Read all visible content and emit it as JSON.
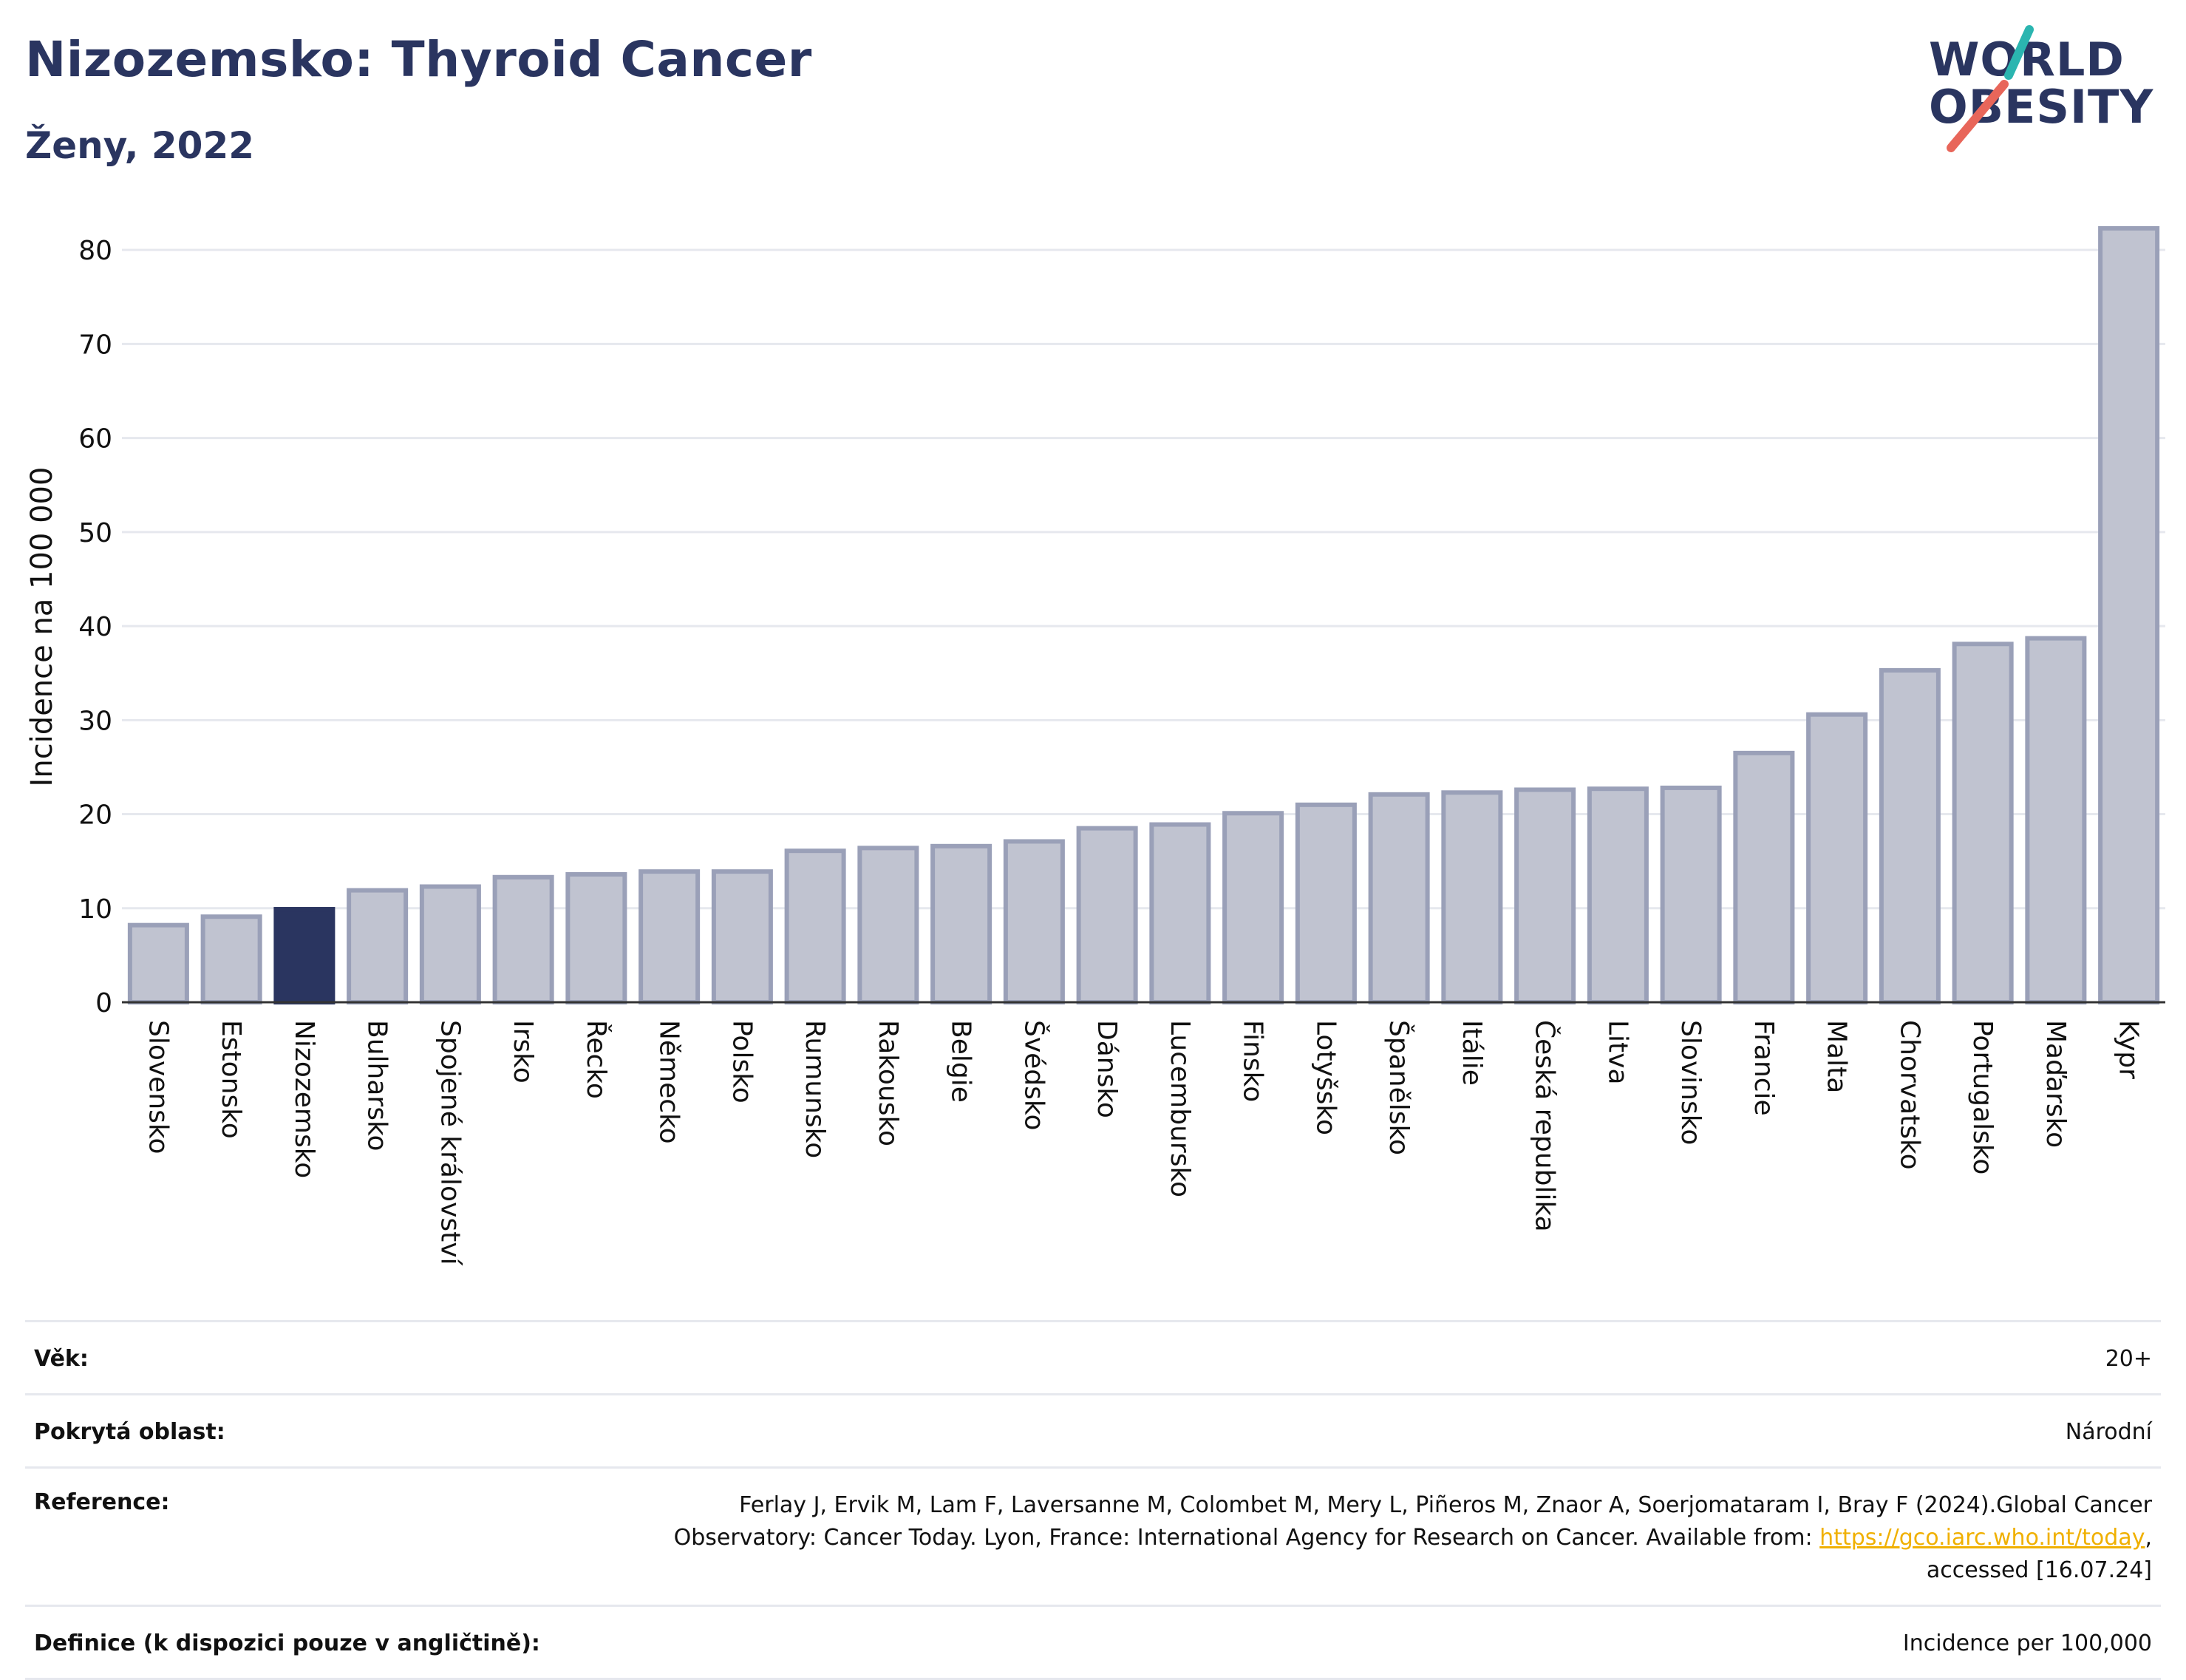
{
  "header": {
    "title": "Nizozemsko: Thyroid Cancer",
    "subtitle": "Ženy, 2022"
  },
  "logo": {
    "line1": "WORLD",
    "line2": "OBESITY",
    "colors": {
      "text": "#2a3560",
      "slash_top": "#2bb5b0",
      "slash_bottom": "#e8665a"
    }
  },
  "chart_data": {
    "type": "bar",
    "ylabel": "Incidence na 100 000",
    "ylim": [
      0,
      83
    ],
    "yticks": [
      0,
      10,
      20,
      30,
      40,
      50,
      60,
      70,
      80
    ],
    "grid": true,
    "highlight_category": "Nizozemsko",
    "colors": {
      "bar": "#c0c3d0",
      "bar_border": "#9aa0b8",
      "highlight": "#2a3560",
      "grid": "#e6e8ee",
      "axis": "#333333"
    },
    "categories": [
      "Slovensko",
      "Estonsko",
      "Nizozemsko",
      "Bulharsko",
      "Spojené království",
      "Irsko",
      "Řecko",
      "Německo",
      "Polsko",
      "Rumunsko",
      "Rakousko",
      "Belgie",
      "Švédsko",
      "Dánsko",
      "Lucembursko",
      "Finsko",
      "Lotyšsko",
      "Španělsko",
      "Itálie",
      "Česká republika",
      "Litva",
      "Slovinsko",
      "Francie",
      "Malta",
      "Chorvatsko",
      "Portugalsko",
      "Maďarsko",
      "Kypr"
    ],
    "values": [
      8.2,
      9.1,
      9.9,
      11.9,
      12.3,
      13.3,
      13.6,
      13.9,
      13.9,
      16.1,
      16.4,
      16.6,
      17.1,
      18.5,
      18.9,
      20.1,
      21.0,
      22.1,
      22.3,
      22.6,
      22.7,
      22.8,
      26.5,
      30.6,
      35.3,
      38.1,
      38.7,
      82.3
    ]
  },
  "info": {
    "rows": [
      {
        "label": "Věk:",
        "value": "20+"
      },
      {
        "label": "Pokrytá oblast:",
        "value": "Národní"
      },
      {
        "label": "Reference:",
        "value_line1": "Ferlay J, Ervik M, Lam F, Laversanne M, Colombet M, Mery L, Piñeros M, Znaor A, Soerjomataram I, Bray F (2024).Global Cancer",
        "value_line2_pre": "Observatory: Cancer Today. Lyon, France: International Agency for Research on Cancer. Available from: ",
        "link": "https://gco.iarc.who.int/today",
        "value_line2_post": ",",
        "value_line3": "accessed [16.07.24]"
      },
      {
        "label": "Definice (k dispozici pouze v angličtině):",
        "value": "Incidence per 100,000"
      }
    ]
  }
}
